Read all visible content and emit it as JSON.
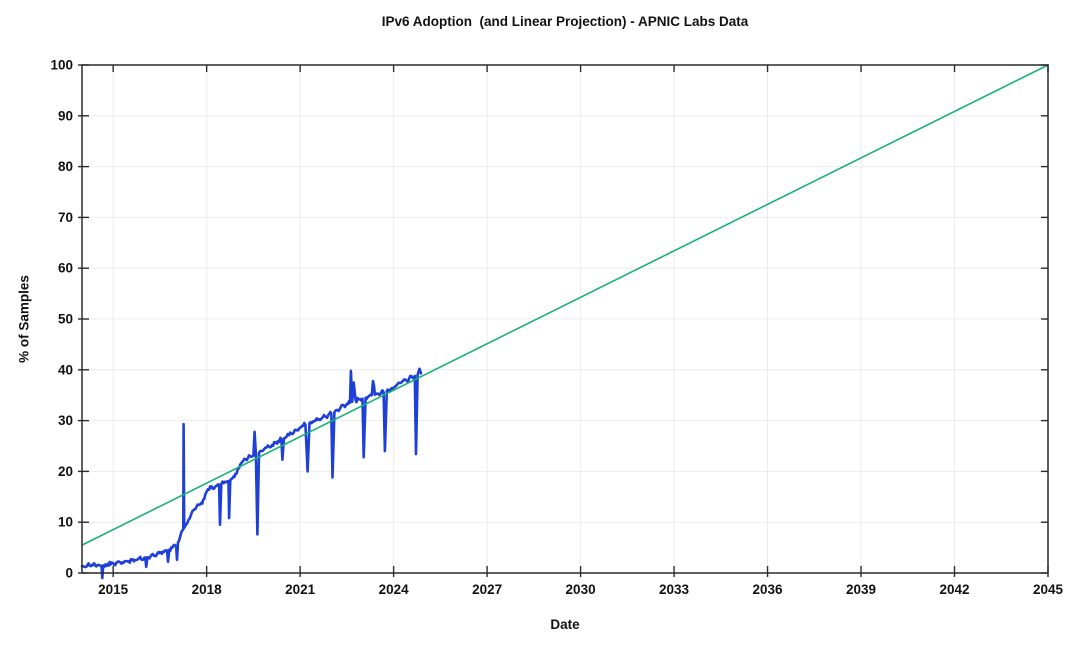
{
  "page": {
    "background": "#ffffff"
  },
  "chart_data": {
    "type": "line",
    "title": "IPv6 Adoption  (and Linear Projection) - APNIC Labs Data",
    "xlabel": "Date",
    "ylabel": "% of Samples",
    "xlim": [
      2014,
      2045
    ],
    "ylim": [
      0,
      100
    ],
    "xticks": [
      2015,
      2018,
      2021,
      2024,
      2027,
      2030,
      2033,
      2036,
      2039,
      2042,
      2045
    ],
    "yticks": [
      0,
      10,
      20,
      30,
      40,
      50,
      60,
      70,
      80,
      90,
      100
    ],
    "grid": true,
    "legend": "none",
    "frame_color": "#2b2b2b",
    "grid_color": "#ececec",
    "text_color": "#111111",
    "series": [
      {
        "id": "ipv6-adoption",
        "name": "IPv6 adoption (% of APNIC samples)",
        "color": "#1e3fd8",
        "width": 2.6,
        "noise_band": 0.45,
        "points": [
          [
            2014.0,
            1.35
          ],
          [
            2014.08,
            1.2
          ],
          [
            2014.17,
            1.5
          ],
          [
            2014.25,
            1.4
          ],
          [
            2014.33,
            1.65
          ],
          [
            2014.42,
            1.5
          ],
          [
            2014.5,
            1.6
          ],
          [
            2014.58,
            1.45
          ],
          [
            2014.63,
            1.4
          ],
          [
            2014.65,
            -1.0
          ],
          [
            2014.68,
            1.5
          ],
          [
            2014.75,
            1.7
          ],
          [
            2014.83,
            1.8
          ],
          [
            2014.92,
            1.7
          ],
          [
            2015.0,
            1.9
          ],
          [
            2015.1,
            2.0
          ],
          [
            2015.2,
            2.2
          ],
          [
            2015.3,
            2.1
          ],
          [
            2015.4,
            2.35
          ],
          [
            2015.5,
            2.3
          ],
          [
            2015.6,
            2.55
          ],
          [
            2015.7,
            2.5
          ],
          [
            2015.8,
            2.75
          ],
          [
            2015.9,
            2.7
          ],
          [
            2016.0,
            3.0
          ],
          [
            2016.03,
            3.05
          ],
          [
            2016.06,
            1.2
          ],
          [
            2016.1,
            3.1
          ],
          [
            2016.2,
            3.3
          ],
          [
            2016.3,
            3.4
          ],
          [
            2016.4,
            3.6
          ],
          [
            2016.5,
            3.9
          ],
          [
            2016.6,
            4.2
          ],
          [
            2016.7,
            4.4
          ],
          [
            2016.73,
            4.45
          ],
          [
            2016.76,
            2.2
          ],
          [
            2016.8,
            4.6
          ],
          [
            2016.9,
            5.0
          ],
          [
            2017.0,
            5.3
          ],
          [
            2017.02,
            5.35
          ],
          [
            2017.05,
            2.6
          ],
          [
            2017.08,
            6.0
          ],
          [
            2017.15,
            7.2
          ],
          [
            2017.2,
            8.2
          ],
          [
            2017.25,
            8.6
          ],
          [
            2017.26,
            29.3
          ],
          [
            2017.28,
            8.9
          ],
          [
            2017.3,
            9.1
          ],
          [
            2017.35,
            9.6
          ],
          [
            2017.42,
            10.5
          ],
          [
            2017.5,
            11.5
          ],
          [
            2017.58,
            12.4
          ],
          [
            2017.67,
            13.0
          ],
          [
            2017.75,
            13.4
          ],
          [
            2017.83,
            13.8
          ],
          [
            2017.92,
            14.6
          ],
          [
            2018.0,
            16.0
          ],
          [
            2018.08,
            16.4
          ],
          [
            2018.17,
            17.0
          ],
          [
            2018.25,
            16.7
          ],
          [
            2018.33,
            17.2
          ],
          [
            2018.4,
            17.4
          ],
          [
            2018.43,
            9.5
          ],
          [
            2018.47,
            17.5
          ],
          [
            2018.55,
            17.7
          ],
          [
            2018.63,
            17.9
          ],
          [
            2018.7,
            18.1
          ],
          [
            2018.72,
            10.8
          ],
          [
            2018.76,
            18.3
          ],
          [
            2018.83,
            18.7
          ],
          [
            2018.92,
            19.5
          ],
          [
            2019.0,
            20.5
          ],
          [
            2019.08,
            21.4
          ],
          [
            2019.17,
            22.0
          ],
          [
            2019.25,
            22.4
          ],
          [
            2019.33,
            22.7
          ],
          [
            2019.42,
            22.9
          ],
          [
            2019.5,
            23.1
          ],
          [
            2019.54,
            27.8
          ],
          [
            2019.58,
            23.3
          ],
          [
            2019.63,
            7.6
          ],
          [
            2019.68,
            23.6
          ],
          [
            2019.76,
            24.0
          ],
          [
            2019.85,
            24.4
          ],
          [
            2019.93,
            24.7
          ],
          [
            2020.0,
            24.9
          ],
          [
            2020.1,
            25.2
          ],
          [
            2020.2,
            25.6
          ],
          [
            2020.3,
            26.0
          ],
          [
            2020.4,
            26.3
          ],
          [
            2020.43,
            22.3
          ],
          [
            2020.48,
            26.5
          ],
          [
            2020.56,
            26.8
          ],
          [
            2020.64,
            27.1
          ],
          [
            2020.72,
            27.4
          ],
          [
            2020.8,
            27.7
          ],
          [
            2020.9,
            28.1
          ],
          [
            2021.0,
            28.6
          ],
          [
            2021.1,
            29.0
          ],
          [
            2021.17,
            29.2
          ],
          [
            2021.24,
            20.0
          ],
          [
            2021.3,
            29.5
          ],
          [
            2021.4,
            29.8
          ],
          [
            2021.5,
            30.0
          ],
          [
            2021.6,
            30.3
          ],
          [
            2021.7,
            30.5
          ],
          [
            2021.8,
            30.8
          ],
          [
            2021.9,
            31.1
          ],
          [
            2022.0,
            31.4
          ],
          [
            2022.04,
            18.8
          ],
          [
            2022.1,
            31.6
          ],
          [
            2022.2,
            32.1
          ],
          [
            2022.3,
            32.6
          ],
          [
            2022.4,
            33.0
          ],
          [
            2022.5,
            33.3
          ],
          [
            2022.6,
            33.5
          ],
          [
            2022.63,
            39.8
          ],
          [
            2022.67,
            33.7
          ],
          [
            2022.72,
            37.5
          ],
          [
            2022.78,
            34.0
          ],
          [
            2022.9,
            34.2
          ],
          [
            2023.0,
            34.3
          ],
          [
            2023.04,
            22.8
          ],
          [
            2023.1,
            34.5
          ],
          [
            2023.2,
            34.8
          ],
          [
            2023.3,
            35.0
          ],
          [
            2023.34,
            37.8
          ],
          [
            2023.4,
            35.1
          ],
          [
            2023.5,
            35.3
          ],
          [
            2023.6,
            35.5
          ],
          [
            2023.68,
            35.6
          ],
          [
            2023.72,
            24.0
          ],
          [
            2023.78,
            35.8
          ],
          [
            2023.9,
            36.1
          ],
          [
            2024.0,
            36.5
          ],
          [
            2024.1,
            37.0
          ],
          [
            2024.2,
            37.4
          ],
          [
            2024.3,
            37.8
          ],
          [
            2024.4,
            38.0
          ],
          [
            2024.5,
            38.3
          ],
          [
            2024.6,
            38.5
          ],
          [
            2024.68,
            38.8
          ],
          [
            2024.72,
            23.4
          ],
          [
            2024.77,
            39.0
          ],
          [
            2024.83,
            40.2
          ],
          [
            2024.88,
            39.3
          ]
        ]
      },
      {
        "id": "linear-projection",
        "name": "Linear projection",
        "color": "#16b271",
        "width": 1.6,
        "points": [
          [
            2014.0,
            5.5
          ],
          [
            2045.0,
            100.0
          ]
        ]
      }
    ]
  }
}
